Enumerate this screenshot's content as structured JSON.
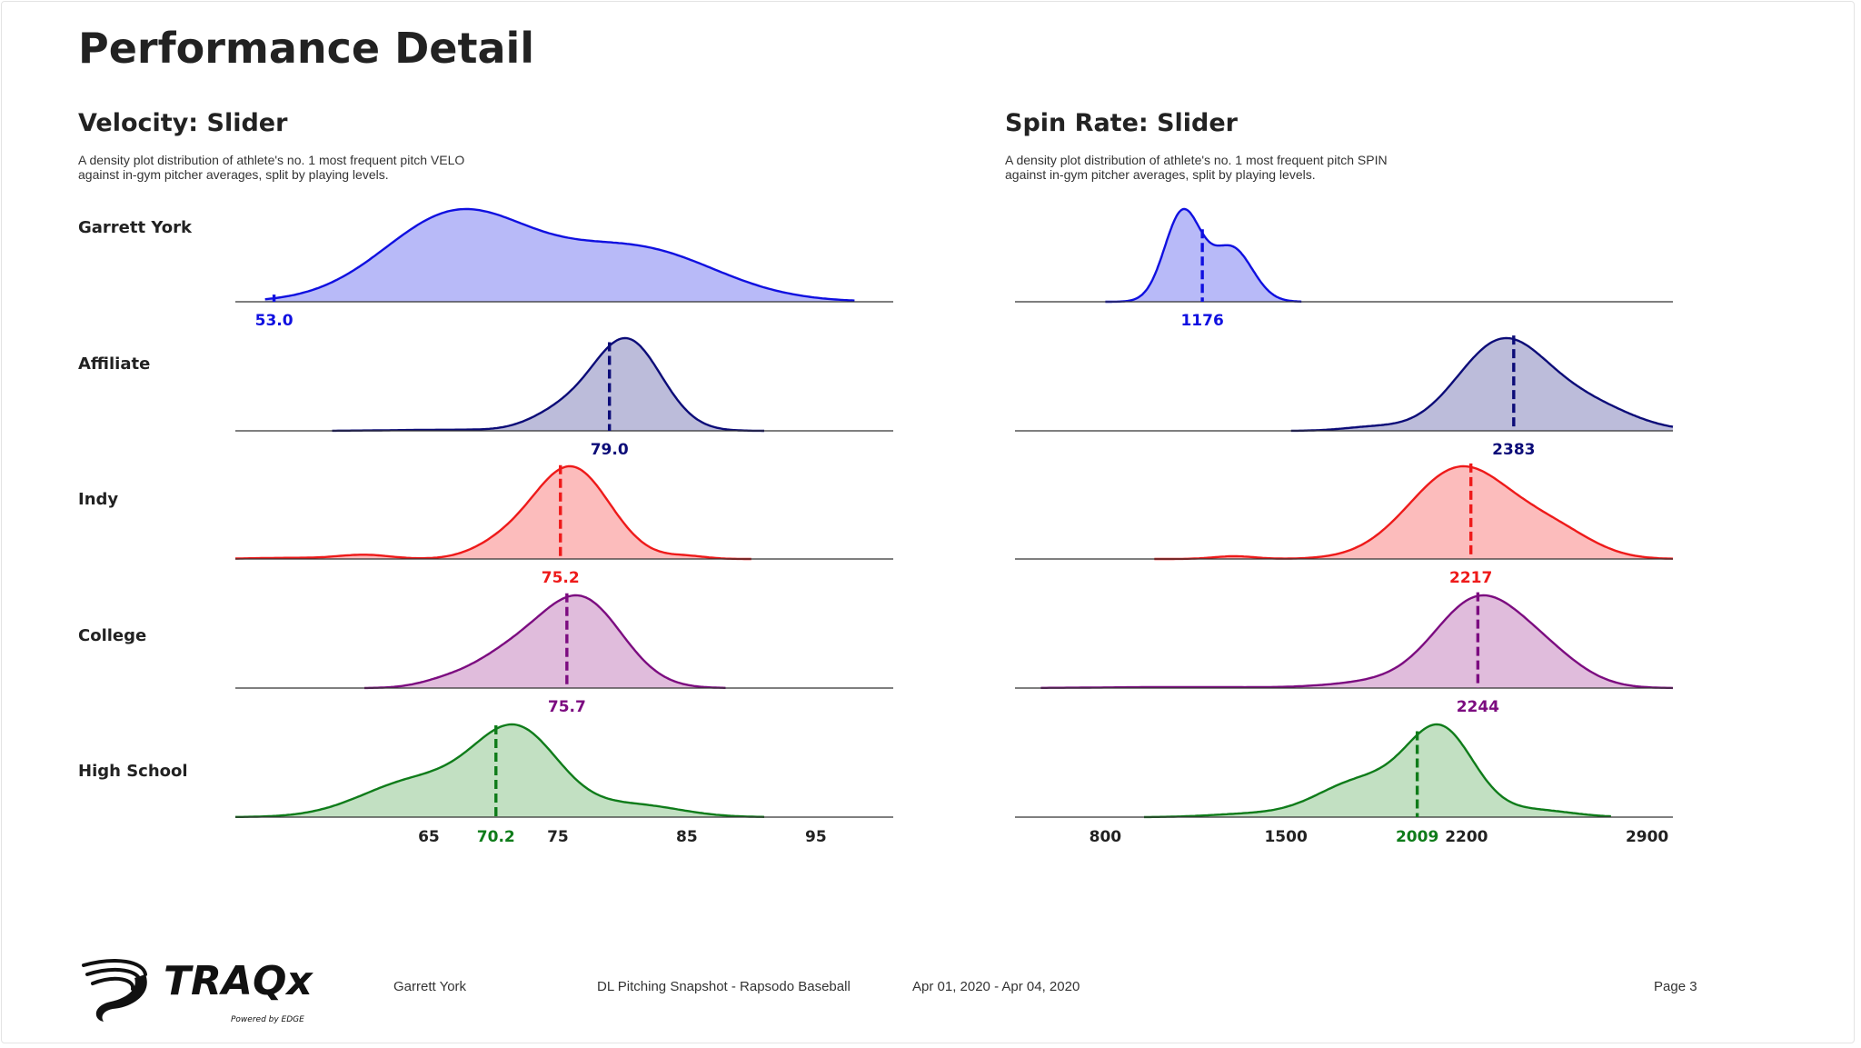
{
  "title": "Performance Detail",
  "panels": [
    {
      "title": "Velocity: Slider",
      "description_line1": "A density plot distribution of athlete's no. 1 most frequent pitch VELO",
      "description_line2": "against in-gym pitcher averages, split by playing levels."
    },
    {
      "title": "Spin Rate: Slider",
      "description_line1": "A density plot distribution of athlete's no. 1 most frequent pitch SPIN",
      "description_line2": "against in-gym pitcher averages, split by playing levels."
    }
  ],
  "rows": [
    {
      "label": "Garrett York",
      "color": "#1010e0",
      "fill": "#b8baf8"
    },
    {
      "label": "Affiliate",
      "color": "#0c0c78",
      "fill": "#bcbcda"
    },
    {
      "label": "Indy",
      "color": "#ee1a1a",
      "fill": "#fcbcbc"
    },
    {
      "label": "College",
      "color": "#7c0c80",
      "fill": "#e0bcdc"
    },
    {
      "label": "High School",
      "color": "#0f7c1a",
      "fill": "#c2e0c2"
    }
  ],
  "chart_data": [
    {
      "type": "area",
      "title": "Velocity: Slider",
      "xlim": [
        50,
        101
      ],
      "ticks": [
        65,
        75,
        85,
        95
      ],
      "series": [
        {
          "name": "Garrett York",
          "mean": 53.0,
          "mean_label": "53.0",
          "range": [
            52.3,
            98.0
          ],
          "components": [
            {
              "mu": 67.2,
              "sd": 5.6,
              "w": 1.0
            },
            {
              "mu": 81.0,
              "sd": 6.2,
              "w": 0.6
            }
          ]
        },
        {
          "name": "Affiliate",
          "mean": 79.0,
          "mean_label": "79.0",
          "range": [
            57.5,
            91.0
          ],
          "components": [
            {
              "mu": 80.3,
              "sd": 2.7,
              "w": 1.0
            },
            {
              "mu": 75.0,
              "sd": 2.3,
              "w": 0.17
            },
            {
              "mu": 67.0,
              "sd": 4.5,
              "w": 0.012
            }
          ]
        },
        {
          "name": "Indy",
          "mean": 75.2,
          "mean_label": "75.2",
          "range": [
            50.0,
            90.0
          ],
          "components": [
            {
              "mu": 76.0,
              "sd": 3.0,
              "w": 1.0
            },
            {
              "mu": 70.5,
              "sd": 2.3,
              "w": 0.12
            },
            {
              "mu": 60.0,
              "sd": 2.0,
              "w": 0.045
            },
            {
              "mu": 54.0,
              "sd": 3.0,
              "w": 0.012
            },
            {
              "mu": 85.0,
              "sd": 1.5,
              "w": 0.03
            }
          ]
        },
        {
          "name": "College",
          "mean": 75.7,
          "mean_label": "75.7",
          "range": [
            60.0,
            88.0
          ],
          "components": [
            {
              "mu": 76.8,
              "sd": 3.2,
              "w": 1.0
            },
            {
              "mu": 71.0,
              "sd": 3.0,
              "w": 0.33
            },
            {
              "mu": 66.0,
              "sd": 2.0,
              "w": 0.05
            }
          ]
        },
        {
          "name": "High School",
          "mean": 70.2,
          "mean_label": "70.2",
          "range": [
            50.0,
            91.0
          ],
          "components": [
            {
              "mu": 71.8,
              "sd": 3.3,
              "w": 1.0
            },
            {
              "mu": 64.0,
              "sd": 4.2,
              "w": 0.42
            },
            {
              "mu": 81.0,
              "sd": 3.5,
              "w": 0.14
            }
          ]
        }
      ]
    },
    {
      "type": "area",
      "title": "Spin Rate: Slider",
      "xlim": [
        450,
        3000
      ],
      "ticks": [
        800,
        1500,
        2200,
        2900
      ],
      "series": [
        {
          "name": "Garrett York",
          "mean": 1176,
          "mean_label": "1176",
          "range": [
            800,
            1560
          ],
          "components": [
            {
              "mu": 1100,
              "sd": 70,
              "w": 1.0
            },
            {
              "mu": 1290,
              "sd": 80,
              "w": 0.6
            }
          ]
        },
        {
          "name": "Affiliate",
          "mean": 2383,
          "mean_label": "2383",
          "range": [
            1520,
            3000
          ],
          "components": [
            {
              "mu": 2340,
              "sd": 175,
              "w": 1.0
            },
            {
              "mu": 2680,
              "sd": 170,
              "w": 0.26
            },
            {
              "mu": 1830,
              "sd": 110,
              "w": 0.04
            }
          ]
        },
        {
          "name": "Indy",
          "mean": 2217,
          "mean_label": "2217",
          "range": [
            990,
            3000
          ],
          "components": [
            {
              "mu": 2180,
              "sd": 200,
              "w": 1.0
            },
            {
              "mu": 2550,
              "sd": 150,
              "w": 0.25
            },
            {
              "mu": 1300,
              "sd": 80,
              "w": 0.03
            }
          ]
        },
        {
          "name": "College",
          "mean": 2244,
          "mean_label": "2244",
          "range": [
            550,
            3000
          ],
          "components": [
            {
              "mu": 2240,
              "sd": 165,
              "w": 1.0
            },
            {
              "mu": 2500,
              "sd": 150,
              "w": 0.35
            },
            {
              "mu": 1900,
              "sd": 200,
              "w": 0.08
            },
            {
              "mu": 1100,
              "sd": 300,
              "w": 0.012
            }
          ]
        },
        {
          "name": "High School",
          "mean": 2009,
          "mean_label": "2009",
          "range": [
            950,
            2760
          ],
          "components": [
            {
              "mu": 2100,
              "sd": 130,
              "w": 1.0
            },
            {
              "mu": 1790,
              "sd": 170,
              "w": 0.42
            },
            {
              "mu": 2470,
              "sd": 140,
              "w": 0.08
            },
            {
              "mu": 1350,
              "sd": 150,
              "w": 0.035
            }
          ]
        }
      ]
    }
  ],
  "footer": {
    "athlete": "Garrett York",
    "report": "DL Pitching Snapshot - Rapsodo Baseball",
    "dates": "Apr 01, 2020 - Apr 04, 2020",
    "page": "Page 3",
    "logo_text": "TRAQx",
    "logo_tagline": "Powered by EDGE"
  },
  "logo_icon": "traqx-swoosh-icon"
}
